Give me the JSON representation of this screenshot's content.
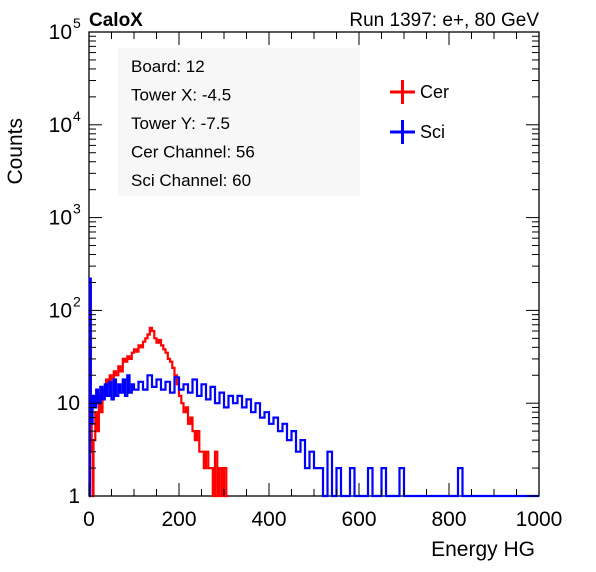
{
  "header": {
    "brand": "CaloX",
    "run": "Run 1397: e+, 80 GeV"
  },
  "info_box": {
    "lines": [
      "Board: 12",
      "Tower X: -4.5",
      "Tower Y: -7.5",
      "Cer Channel: 56",
      "Sci Channel: 60"
    ]
  },
  "chart_data": {
    "type": "line",
    "title": "",
    "xlabel": "Energy HG",
    "ylabel": "Counts",
    "xlim": [
      0,
      1000
    ],
    "ylim": [
      1,
      100000
    ],
    "yscale": "log",
    "xticks": [
      "0",
      "200",
      "400",
      "600",
      "800",
      "1000"
    ],
    "yticks": [
      {
        "base": "1",
        "exp": ""
      },
      {
        "base": "10",
        "exp": ""
      },
      {
        "base": "10",
        "exp": "2"
      },
      {
        "base": "10",
        "exp": "3"
      },
      {
        "base": "10",
        "exp": "4"
      },
      {
        "base": "10",
        "exp": "5"
      }
    ],
    "grid": false,
    "legend_position": "top-right",
    "series": [
      {
        "name": "Cer",
        "color": "#ff0000",
        "points": [
          [
            0,
            1
          ],
          [
            2,
            180
          ],
          [
            4,
            10
          ],
          [
            6,
            3
          ],
          [
            8,
            1
          ],
          [
            10,
            4
          ],
          [
            14,
            8
          ],
          [
            18,
            5
          ],
          [
            22,
            12
          ],
          [
            26,
            8
          ],
          [
            30,
            14
          ],
          [
            34,
            12
          ],
          [
            38,
            18
          ],
          [
            42,
            15
          ],
          [
            46,
            20
          ],
          [
            50,
            18
          ],
          [
            55,
            22
          ],
          [
            60,
            20
          ],
          [
            65,
            25
          ],
          [
            70,
            22
          ],
          [
            75,
            30
          ],
          [
            80,
            28
          ],
          [
            85,
            32
          ],
          [
            90,
            30
          ],
          [
            95,
            35
          ],
          [
            100,
            38
          ],
          [
            105,
            36
          ],
          [
            110,
            42
          ],
          [
            115,
            40
          ],
          [
            120,
            46
          ],
          [
            125,
            50
          ],
          [
            130,
            55
          ],
          [
            135,
            65
          ],
          [
            140,
            60
          ],
          [
            145,
            50
          ],
          [
            150,
            45
          ],
          [
            155,
            48
          ],
          [
            160,
            42
          ],
          [
            165,
            38
          ],
          [
            170,
            35
          ],
          [
            175,
            30
          ],
          [
            180,
            28
          ],
          [
            185,
            24
          ],
          [
            190,
            20
          ],
          [
            195,
            16
          ],
          [
            200,
            12
          ],
          [
            205,
            10
          ],
          [
            210,
            8
          ],
          [
            215,
            9
          ],
          [
            220,
            6
          ],
          [
            225,
            7
          ],
          [
            230,
            5
          ],
          [
            235,
            4
          ],
          [
            240,
            5
          ],
          [
            245,
            3
          ],
          [
            250,
            3
          ],
          [
            255,
            2
          ],
          [
            260,
            3
          ],
          [
            265,
            2
          ],
          [
            270,
            2
          ],
          [
            275,
            1
          ],
          [
            280,
            3
          ],
          [
            285,
            1
          ],
          [
            290,
            2
          ],
          [
            295,
            1
          ],
          [
            300,
            2
          ],
          [
            305,
            1
          ],
          [
            310,
            1
          ]
        ]
      },
      {
        "name": "Sci",
        "color": "#0000ff",
        "points": [
          [
            0,
            1
          ],
          [
            2,
            220
          ],
          [
            4,
            6
          ],
          [
            8,
            12
          ],
          [
            12,
            9
          ],
          [
            16,
            14
          ],
          [
            20,
            10
          ],
          [
            25,
            15
          ],
          [
            30,
            11
          ],
          [
            35,
            16
          ],
          [
            40,
            12
          ],
          [
            45,
            17
          ],
          [
            50,
            11
          ],
          [
            55,
            18
          ],
          [
            60,
            12
          ],
          [
            65,
            16
          ],
          [
            70,
            13
          ],
          [
            75,
            18
          ],
          [
            80,
            12
          ],
          [
            85,
            20
          ],
          [
            90,
            13
          ],
          [
            95,
            16
          ],
          [
            100,
            14
          ],
          [
            110,
            17
          ],
          [
            120,
            14
          ],
          [
            130,
            20
          ],
          [
            140,
            15
          ],
          [
            150,
            18
          ],
          [
            160,
            14
          ],
          [
            170,
            17
          ],
          [
            180,
            13
          ],
          [
            190,
            19
          ],
          [
            200,
            14
          ],
          [
            210,
            16
          ],
          [
            220,
            13
          ],
          [
            230,
            18
          ],
          [
            240,
            12
          ],
          [
            250,
            16
          ],
          [
            260,
            11
          ],
          [
            270,
            15
          ],
          [
            280,
            10
          ],
          [
            290,
            13
          ],
          [
            300,
            9
          ],
          [
            310,
            12
          ],
          [
            320,
            10
          ],
          [
            330,
            12
          ],
          [
            340,
            9
          ],
          [
            350,
            11
          ],
          [
            360,
            8
          ],
          [
            370,
            10
          ],
          [
            380,
            7
          ],
          [
            390,
            8
          ],
          [
            400,
            6
          ],
          [
            410,
            7
          ],
          [
            420,
            5
          ],
          [
            430,
            6
          ],
          [
            440,
            4
          ],
          [
            450,
            5
          ],
          [
            460,
            3
          ],
          [
            470,
            4
          ],
          [
            480,
            2
          ],
          [
            490,
            3
          ],
          [
            500,
            2
          ],
          [
            510,
            2
          ],
          [
            520,
            1
          ],
          [
            530,
            3
          ],
          [
            540,
            1
          ],
          [
            550,
            2
          ],
          [
            560,
            1
          ],
          [
            570,
            1
          ],
          [
            580,
            2
          ],
          [
            590,
            1
          ],
          [
            600,
            1
          ],
          [
            610,
            1
          ],
          [
            620,
            2
          ],
          [
            630,
            1
          ],
          [
            640,
            1
          ],
          [
            650,
            2
          ],
          [
            660,
            1
          ],
          [
            680,
            1
          ],
          [
            690,
            2
          ],
          [
            700,
            1
          ],
          [
            750,
            1
          ],
          [
            800,
            1
          ],
          [
            820,
            2
          ],
          [
            830,
            1
          ],
          [
            900,
            1
          ],
          [
            1000,
            1
          ]
        ]
      }
    ]
  }
}
